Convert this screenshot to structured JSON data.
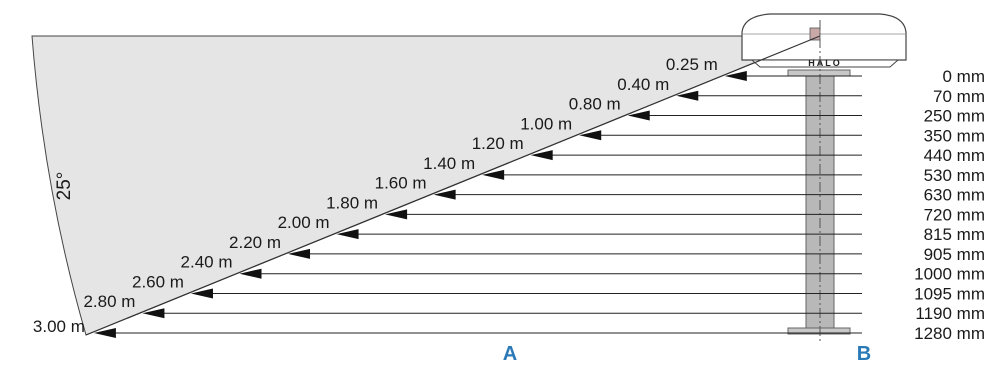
{
  "angle_label": "25°",
  "axis_labels": {
    "a": "A",
    "b": "B"
  },
  "brand_text": "HALO",
  "accent_color": "#2a7ab8",
  "rows": [
    {
      "distance": "0.25 m",
      "height": "0 mm"
    },
    {
      "distance": "0.40 m",
      "height": "70 mm"
    },
    {
      "distance": "0.80 m",
      "height": "250 mm"
    },
    {
      "distance": "1.00 m",
      "height": "350 mm"
    },
    {
      "distance": "1.20 m",
      "height": "440 mm"
    },
    {
      "distance": "1.40 m",
      "height": "530 mm"
    },
    {
      "distance": "1.60 m",
      "height": "630 mm"
    },
    {
      "distance": "1.80 m",
      "height": "720 mm"
    },
    {
      "distance": "2.00 m",
      "height": "815 mm"
    },
    {
      "distance": "2.20 m",
      "height": "905 mm"
    },
    {
      "distance": "2.40 m",
      "height": "1000 mm"
    },
    {
      "distance": "2.60 m",
      "height": "1095 mm"
    },
    {
      "distance": "2.80 m",
      "height": "1190 mm"
    },
    {
      "distance": "3.00 m",
      "height": "1280 mm"
    }
  ]
}
